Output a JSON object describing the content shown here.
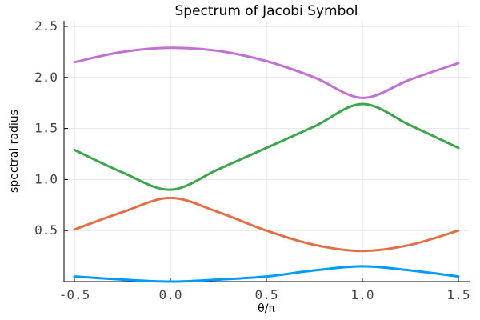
{
  "chart_data": {
    "type": "line",
    "title": "Spectrum of Jacobi Symbol",
    "xlabel": "θ/π",
    "ylabel": "spectral radius",
    "xlim": [
      -0.5,
      1.5
    ],
    "ylim": [
      0.0,
      2.5
    ],
    "x_ticks": [
      -0.5,
      0.0,
      0.5,
      1.0,
      1.5
    ],
    "x_tick_labels": [
      "-0.5",
      "0.0",
      "0.5",
      "1.0",
      "1.5"
    ],
    "y_ticks": [
      0.5,
      1.0,
      1.5,
      2.0,
      2.5
    ],
    "y_tick_labels": [
      "0.5",
      "1.0",
      "1.5",
      "2.0",
      "2.5"
    ],
    "grid": true,
    "legend": "none",
    "x": [
      -0.5,
      -0.25,
      0.0,
      0.25,
      0.5,
      0.75,
      1.0,
      1.25,
      1.5
    ],
    "series": [
      {
        "color": "#009AFA",
        "values": [
          0.05,
          0.02,
          0.0,
          0.02,
          0.05,
          0.11,
          0.15,
          0.11,
          0.05
        ]
      },
      {
        "color": "#E26F46",
        "values": [
          0.51,
          0.68,
          0.82,
          0.68,
          0.5,
          0.36,
          0.3,
          0.36,
          0.5
        ]
      },
      {
        "color": "#3EA44E",
        "values": [
          1.29,
          1.07,
          0.9,
          1.1,
          1.31,
          1.52,
          1.74,
          1.53,
          1.31
        ]
      },
      {
        "color": "#C271D2",
        "values": [
          2.15,
          2.25,
          2.29,
          2.26,
          2.16,
          2.0,
          1.8,
          1.98,
          2.14
        ]
      }
    ]
  }
}
